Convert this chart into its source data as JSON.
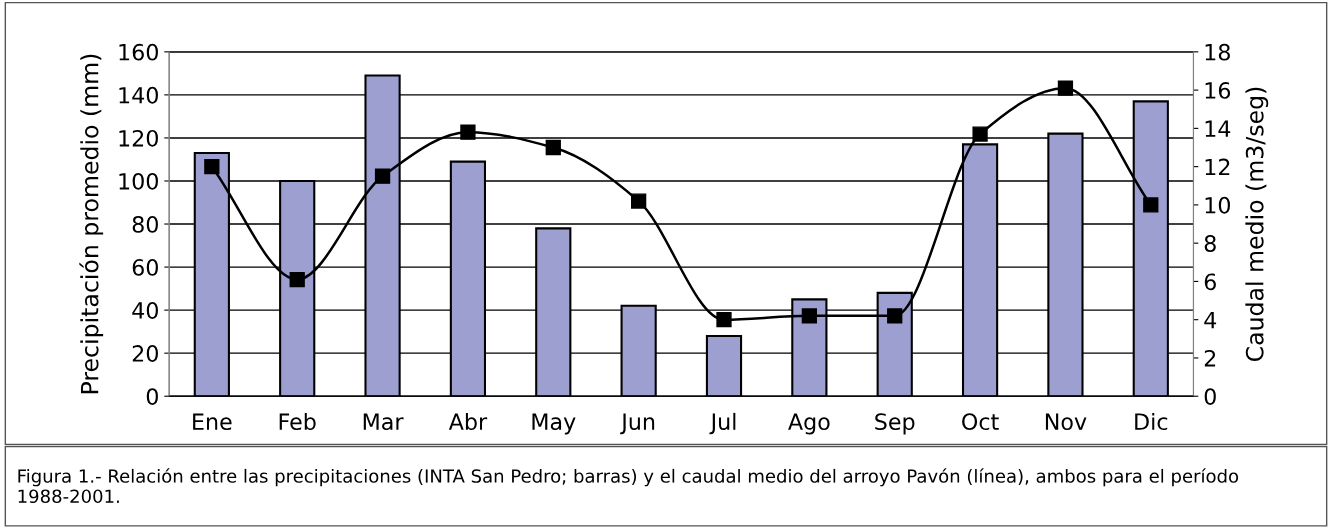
{
  "chart_data": {
    "type": "bar",
    "ylabel": "Precipitación promedio (mm)",
    "y2label": "Caudal medio (m3/seg)",
    "categories": [
      "Ene",
      "Feb",
      "Mar",
      "Abr",
      "May",
      "Jun",
      "Jul",
      "Ago",
      "Sep",
      "Oct",
      "Nov",
      "Dic"
    ],
    "series": [
      {
        "color": "#9c9fd0",
        "values": [
          113,
          100,
          149,
          109,
          78,
          42,
          28,
          45,
          48,
          117,
          122,
          137
        ]
      },
      {
        "type": "line",
        "axis": "y2",
        "color": "#000000",
        "marker": "square",
        "line_style": "solid",
        "values": [
          12.0,
          6.1,
          11.5,
          13.8,
          13.0,
          10.2,
          4.0,
          4.2,
          4.2,
          13.7,
          16.1,
          10.0
        ]
      }
    ],
    "ylim": [
      0,
      160
    ],
    "yticks": [
      0,
      20,
      40,
      60,
      80,
      100,
      120,
      140,
      160
    ],
    "y2lim": [
      0,
      18
    ],
    "y2ticks": [
      0,
      2,
      4,
      6,
      8,
      10,
      12,
      14,
      16,
      18
    ],
    "grid": "y",
    "legend": false,
    "annotations": [
      "Figura 1.- Relación entre las precipitaciones (INTA San Pedro; barras) y el caudal medio del arroyo Pavón (línea), ambos para el período 1988-2001."
    ]
  }
}
